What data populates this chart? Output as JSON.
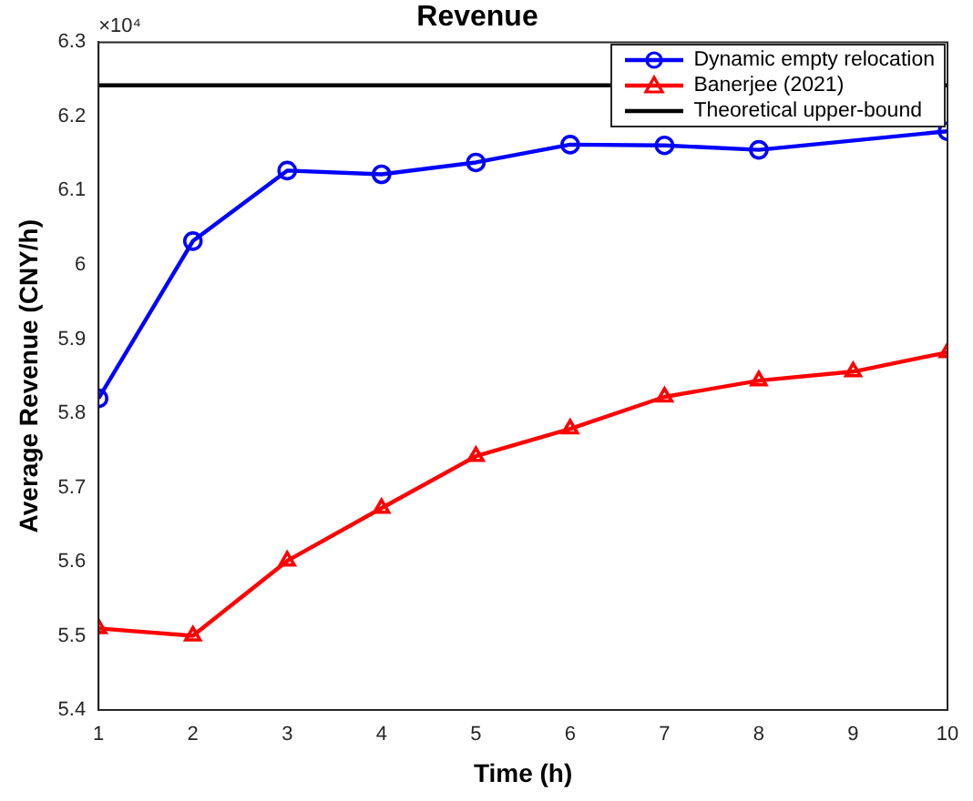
{
  "chart_data": {
    "type": "line",
    "title": "Revenue",
    "xlabel": "Time (h)",
    "ylabel": "Average Revenue (CNY/h)",
    "annotations": [
      "×10⁴"
    ],
    "x": [
      1,
      2,
      3,
      4,
      5,
      6,
      7,
      8,
      9,
      10
    ],
    "series": [
      {
        "name": "Dynamic empty relocation",
        "color": "#0000ff",
        "marker": "circle",
        "values": [
          5.82,
          6.032,
          6.127,
          6.122,
          6.138,
          6.162,
          6.161,
          6.155,
          null,
          6.18
        ]
      },
      {
        "name": "Banerjee (2021)",
        "color": "#ff0000",
        "marker": "triangle",
        "values": [
          5.51,
          5.5,
          5.601,
          5.672,
          5.742,
          5.779,
          5.822,
          5.844,
          5.856,
          5.882
        ]
      },
      {
        "name": "Theoretical upper-bound",
        "color": "#000000",
        "marker": "none",
        "x": [
          1,
          10
        ],
        "values": [
          6.242,
          6.242
        ]
      }
    ],
    "xlim": [
      1,
      10
    ],
    "xticks": [
      1,
      2,
      3,
      4,
      5,
      6,
      7,
      8,
      9,
      10
    ],
    "ylim": [
      5.4,
      6.3
    ],
    "yticks": [
      5.4,
      5.5,
      5.6,
      5.7,
      5.8,
      5.9,
      6,
      6.1,
      6.2,
      6.3
    ],
    "grid": false,
    "legend": "top right",
    "line_style": "solid"
  }
}
